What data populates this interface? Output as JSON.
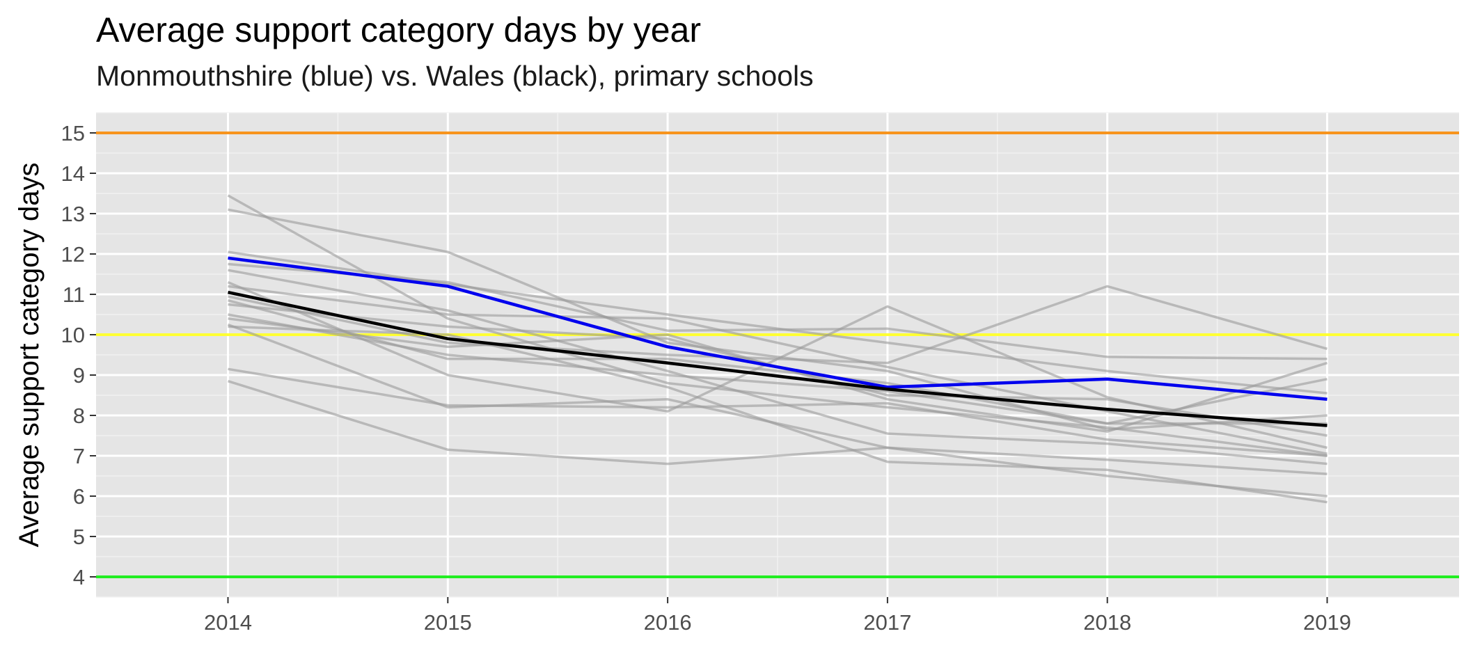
{
  "chart_data": {
    "type": "line",
    "title": "Average support category days by year",
    "subtitle": "Monmouthshire (blue) vs. Wales (black), primary schools",
    "xlabel": "",
    "ylabel": "Average support category days",
    "x": [
      2014,
      2015,
      2016,
      2017,
      2018,
      2019
    ],
    "xlim": [
      2013.4,
      2019.6
    ],
    "ylim": [
      3.5,
      15.5
    ],
    "yticks": [
      4,
      5,
      6,
      7,
      8,
      9,
      10,
      11,
      12,
      13,
      14,
      15
    ],
    "grid": true,
    "legend": "none",
    "reference_lines": [
      {
        "y": 15,
        "color": "#f7941d"
      },
      {
        "y": 10,
        "color": "#ffff33"
      },
      {
        "y": 4,
        "color": "#22ee22"
      }
    ],
    "highlight_series": [
      {
        "values": [
          11.9,
          11.2,
          9.7,
          8.7,
          8.9,
          8.4
        ],
        "color": "#0000ee"
      },
      {
        "values": [
          11.05,
          9.9,
          9.3,
          8.65,
          8.15,
          7.75
        ],
        "color": "#000000"
      }
    ],
    "background_series_color": "#999999",
    "background_series": [
      [
        13.45,
        10.4,
        8.8,
        8.2,
        7.7,
        7.0
      ],
      [
        13.1,
        12.05,
        9.8,
        9.1,
        7.65,
        8.0
      ],
      [
        12.05,
        11.25,
        10.5,
        9.8,
        9.1,
        8.55
      ],
      [
        11.75,
        11.3,
        10.1,
        10.15,
        9.45,
        9.4
      ],
      [
        11.6,
        10.6,
        9.1,
        7.55,
        7.3,
        6.8
      ],
      [
        11.3,
        9.0,
        8.1,
        10.7,
        8.45,
        7.2
      ],
      [
        11.2,
        10.5,
        10.4,
        9.2,
        8.1,
        7.05
      ],
      [
        10.95,
        9.8,
        9.5,
        9.3,
        11.2,
        9.65
      ],
      [
        10.85,
        9.4,
        9.4,
        8.8,
        7.8,
        8.9
      ],
      [
        10.75,
        10.2,
        9.9,
        8.5,
        8.4,
        7.5
      ],
      [
        10.5,
        9.5,
        9.0,
        8.6,
        7.8,
        7.8
      ],
      [
        10.4,
        9.7,
        10.0,
        8.4,
        7.6,
        9.3
      ],
      [
        10.25,
        8.2,
        8.4,
        7.2,
        6.5,
        6.0
      ],
      [
        10.2,
        10.0,
        8.7,
        6.85,
        6.65,
        5.85
      ],
      [
        9.15,
        8.25,
        8.2,
        8.3,
        7.4,
        7.0
      ],
      [
        8.85,
        7.15,
        6.8,
        7.2,
        6.9,
        6.55
      ]
    ]
  }
}
